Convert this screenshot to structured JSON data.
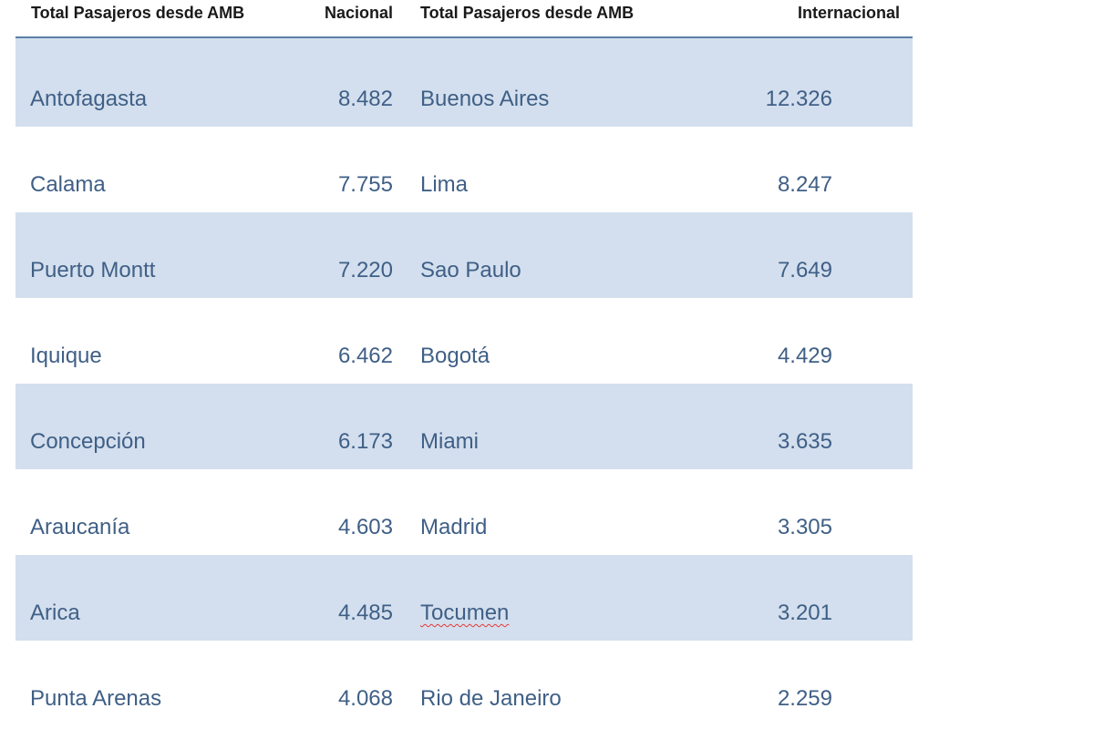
{
  "headers": {
    "col1": "Total Pasajeros desde AMB",
    "col2": "Nacional",
    "col3": "Total Pasajeros desde AMB",
    "col4": "Internacional"
  },
  "rows": [
    {
      "nacional_city": "Antofagasta",
      "nacional_value": "8.482",
      "internacional_city": "Buenos Aires",
      "internacional_value": "12.326"
    },
    {
      "nacional_city": "Calama",
      "nacional_value": "7.755",
      "internacional_city": "Lima",
      "internacional_value": "8.247"
    },
    {
      "nacional_city": "Puerto Montt",
      "nacional_value": "7.220",
      "internacional_city": "Sao Paulo",
      "internacional_value": "7.649"
    },
    {
      "nacional_city": "Iquique",
      "nacional_value": "6.462",
      "internacional_city": "Bogotá",
      "internacional_value": "4.429"
    },
    {
      "nacional_city": "Concepción",
      "nacional_value": "6.173",
      "internacional_city": "Miami",
      "internacional_value": "3.635"
    },
    {
      "nacional_city": "Araucanía",
      "nacional_value": "4.603",
      "internacional_city": "Madrid",
      "internacional_value": "3.305"
    },
    {
      "nacional_city": "Arica",
      "nacional_value": "4.485",
      "internacional_city": "Tocumen",
      "internacional_value": "3.201"
    },
    {
      "nacional_city": "Punta Arenas",
      "nacional_value": "4.068",
      "internacional_city": "Rio de Janeiro",
      "internacional_value": "2.259"
    }
  ],
  "colors": {
    "row_shade": "#d3dfee",
    "text": "#3f5f86",
    "header_rule": "#5a7fa8"
  }
}
